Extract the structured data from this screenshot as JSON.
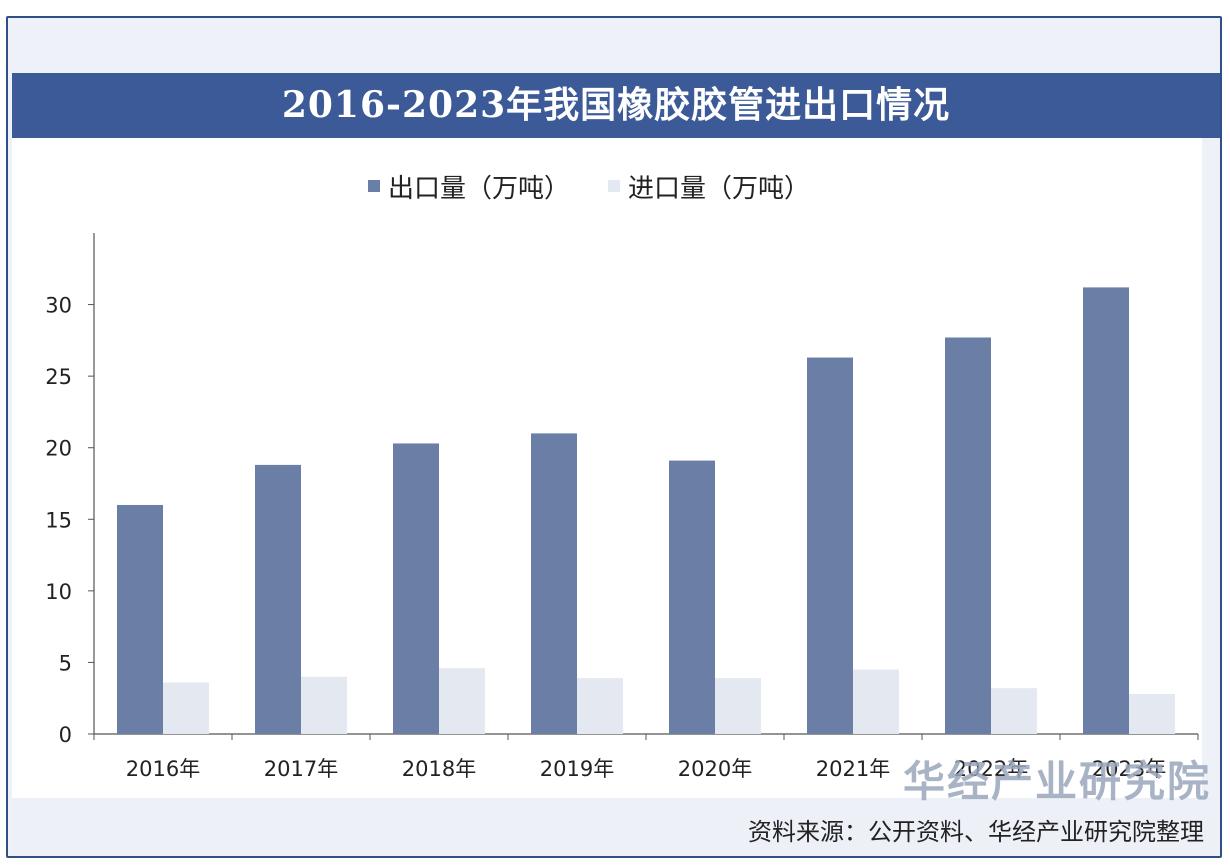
{
  "title": "2016-2023年我国橡胶胶管进出口情况",
  "watermark": "华经产业研究院",
  "source": "资料来源：公开资料、华经产业研究院整理",
  "colors": {
    "export": "#6b7fa6",
    "import": "#e4e8f0",
    "title_bg": "#3c5a98"
  },
  "chart_data": {
    "type": "bar",
    "categories": [
      "2016年",
      "2017年",
      "2018年",
      "2019年",
      "2020年",
      "2021年",
      "2022年",
      "2023年"
    ],
    "series": [
      {
        "name": "出口量（万吨）",
        "values": [
          16.0,
          18.8,
          20.3,
          21.0,
          19.1,
          26.3,
          27.7,
          31.2
        ]
      },
      {
        "name": "进口量（万吨）",
        "values": [
          3.6,
          4.0,
          4.6,
          3.9,
          3.9,
          4.5,
          3.2,
          2.8
        ]
      }
    ],
    "yticks": [
      0,
      5,
      10,
      15,
      20,
      25,
      30
    ],
    "ylim": [
      0,
      35
    ],
    "legend": "top-center",
    "grid": false
  }
}
